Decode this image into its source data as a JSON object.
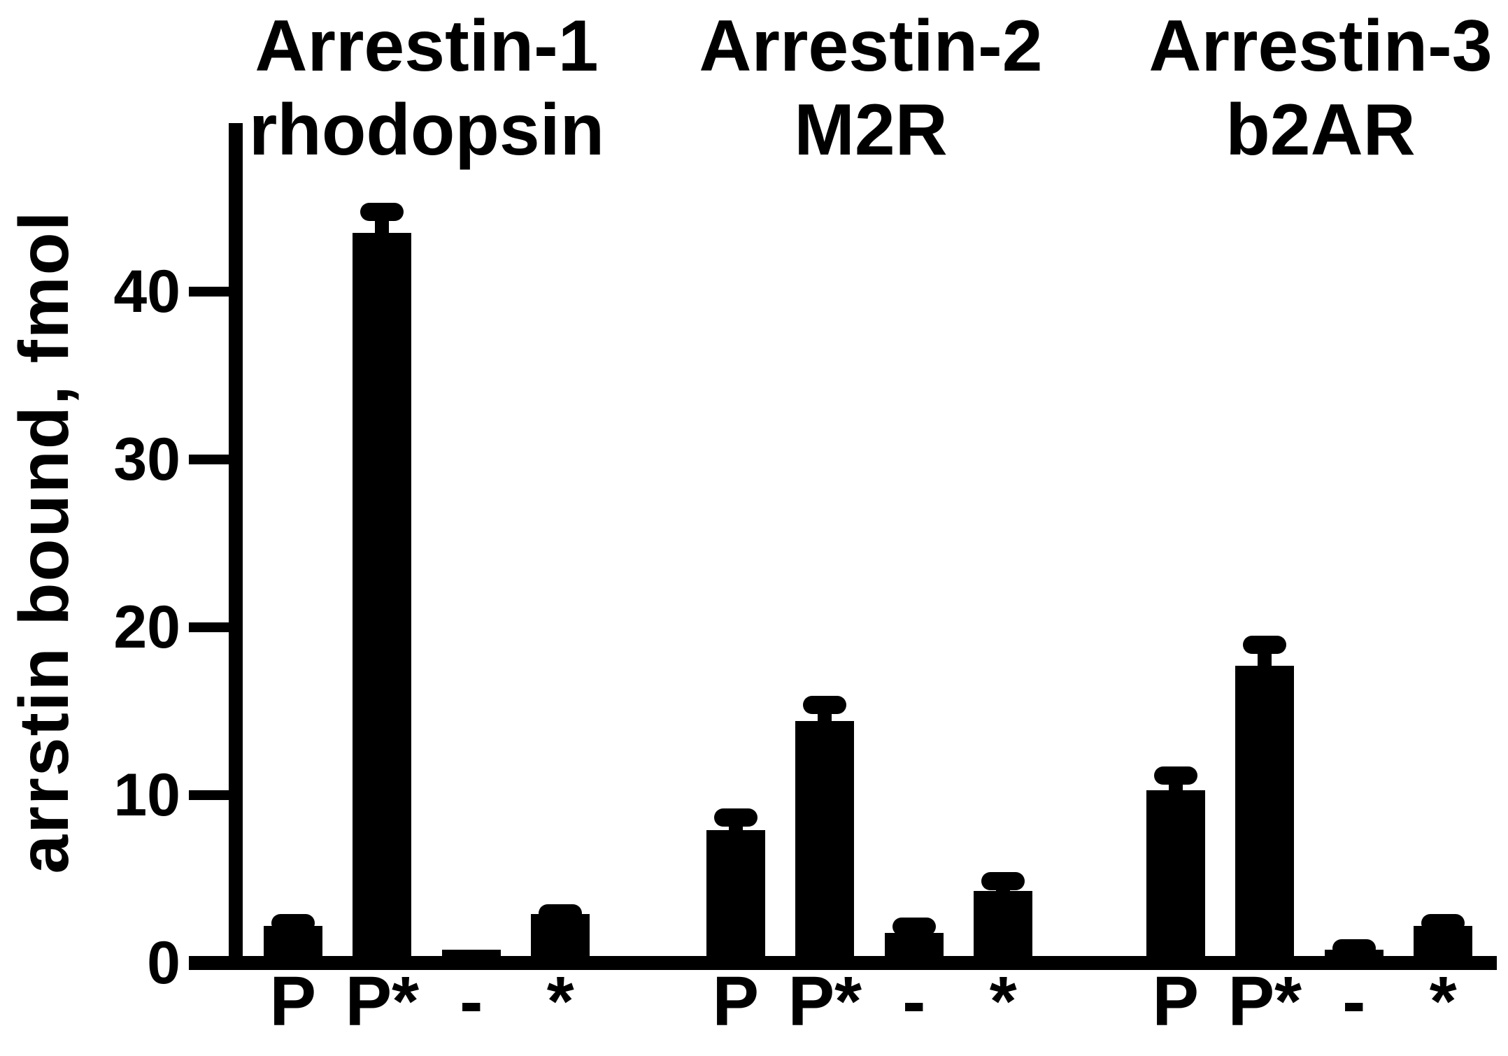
{
  "figure": {
    "background_color": "#ffffff",
    "ink_color": "#000000"
  },
  "chart_data": {
    "type": "bar",
    "title": "",
    "ylabel": "arrstin bound, fmol",
    "xlabel": "",
    "ylim": [
      0,
      50
    ],
    "yticks": [
      0,
      10,
      20,
      30,
      40
    ],
    "grid": false,
    "legend": null,
    "bar_color": "#000000",
    "error_bar_style": "upper whisker with rounded cap",
    "groups": [
      {
        "title": [
          "Arrestin-1",
          "rhodopsin"
        ],
        "categories": [
          "P",
          "P*",
          "-",
          "*"
        ],
        "values": [
          2.2,
          43.5,
          0.8,
          2.9
        ],
        "errors": [
          0.7,
          1.8,
          0,
          0.6
        ]
      },
      {
        "title": [
          "Arrestin-2",
          "M2R"
        ],
        "categories": [
          "P",
          "P*",
          "-",
          "*"
        ],
        "values": [
          7.9,
          14.4,
          1.8,
          4.3
        ],
        "errors": [
          1.3,
          1.5,
          0.9,
          1.1
        ]
      },
      {
        "title": [
          "Arrestin-3",
          "b2AR"
        ],
        "categories": [
          "P",
          "P*",
          "-",
          "*"
        ],
        "values": [
          10.3,
          17.7,
          0.8,
          2.2
        ],
        "errors": [
          1.4,
          1.8,
          0.6,
          0.7
        ]
      }
    ]
  }
}
